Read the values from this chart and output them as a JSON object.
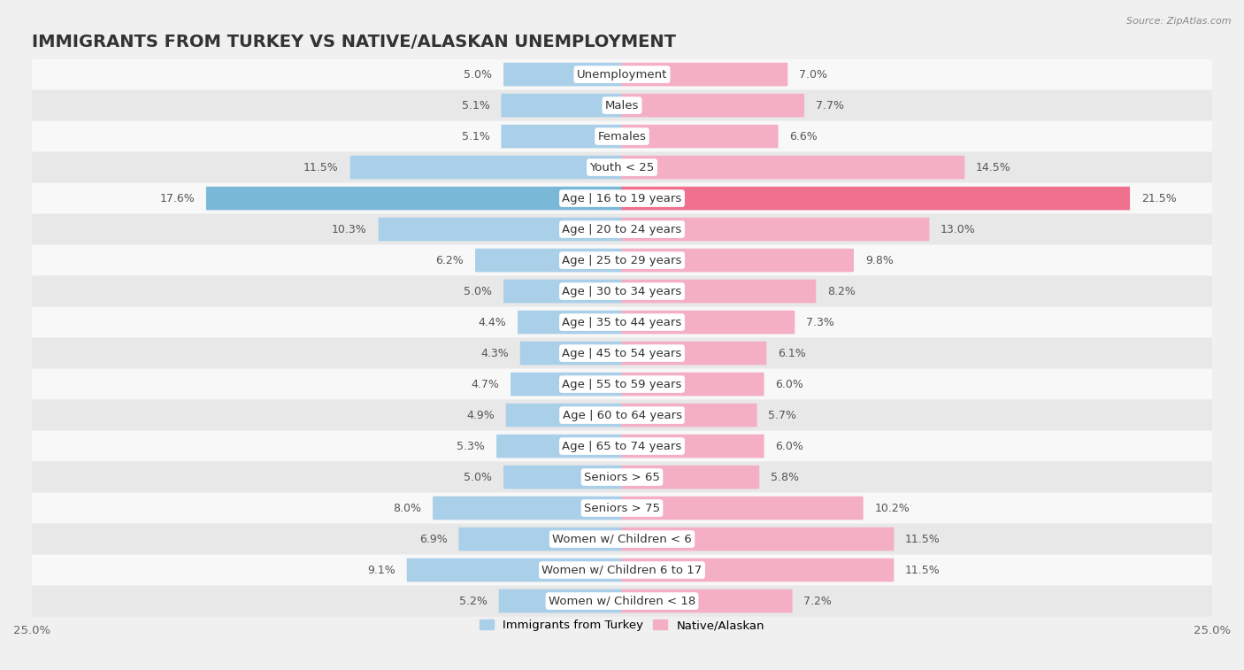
{
  "title": "IMMIGRANTS FROM TURKEY VS NATIVE/ALASKAN UNEMPLOYMENT",
  "source": "Source: ZipAtlas.com",
  "categories": [
    "Unemployment",
    "Males",
    "Females",
    "Youth < 25",
    "Age | 16 to 19 years",
    "Age | 20 to 24 years",
    "Age | 25 to 29 years",
    "Age | 30 to 34 years",
    "Age | 35 to 44 years",
    "Age | 45 to 54 years",
    "Age | 55 to 59 years",
    "Age | 60 to 64 years",
    "Age | 65 to 74 years",
    "Seniors > 65",
    "Seniors > 75",
    "Women w/ Children < 6",
    "Women w/ Children 6 to 17",
    "Women w/ Children < 18"
  ],
  "left_values": [
    5.0,
    5.1,
    5.1,
    11.5,
    17.6,
    10.3,
    6.2,
    5.0,
    4.4,
    4.3,
    4.7,
    4.9,
    5.3,
    5.0,
    8.0,
    6.9,
    9.1,
    5.2
  ],
  "right_values": [
    7.0,
    7.7,
    6.6,
    14.5,
    21.5,
    13.0,
    9.8,
    8.2,
    7.3,
    6.1,
    6.0,
    5.7,
    6.0,
    5.8,
    10.2,
    11.5,
    11.5,
    7.2
  ],
  "left_color": "#aacfe8",
  "right_color": "#f4afc4",
  "highlight_left_color": "#7ab8d8",
  "highlight_right_color": "#f07090",
  "bar_height": 0.72,
  "xlim": 25.0,
  "bg_color": "#f0f0f0",
  "row_colors": [
    "#f8f8f8",
    "#e8e8e8"
  ],
  "legend_left": "Immigrants from Turkey",
  "legend_right": "Native/Alaskan",
  "title_fontsize": 14,
  "label_fontsize": 9.5,
  "value_fontsize": 9,
  "tick_fontsize": 9.5,
  "highlight_row": 4
}
